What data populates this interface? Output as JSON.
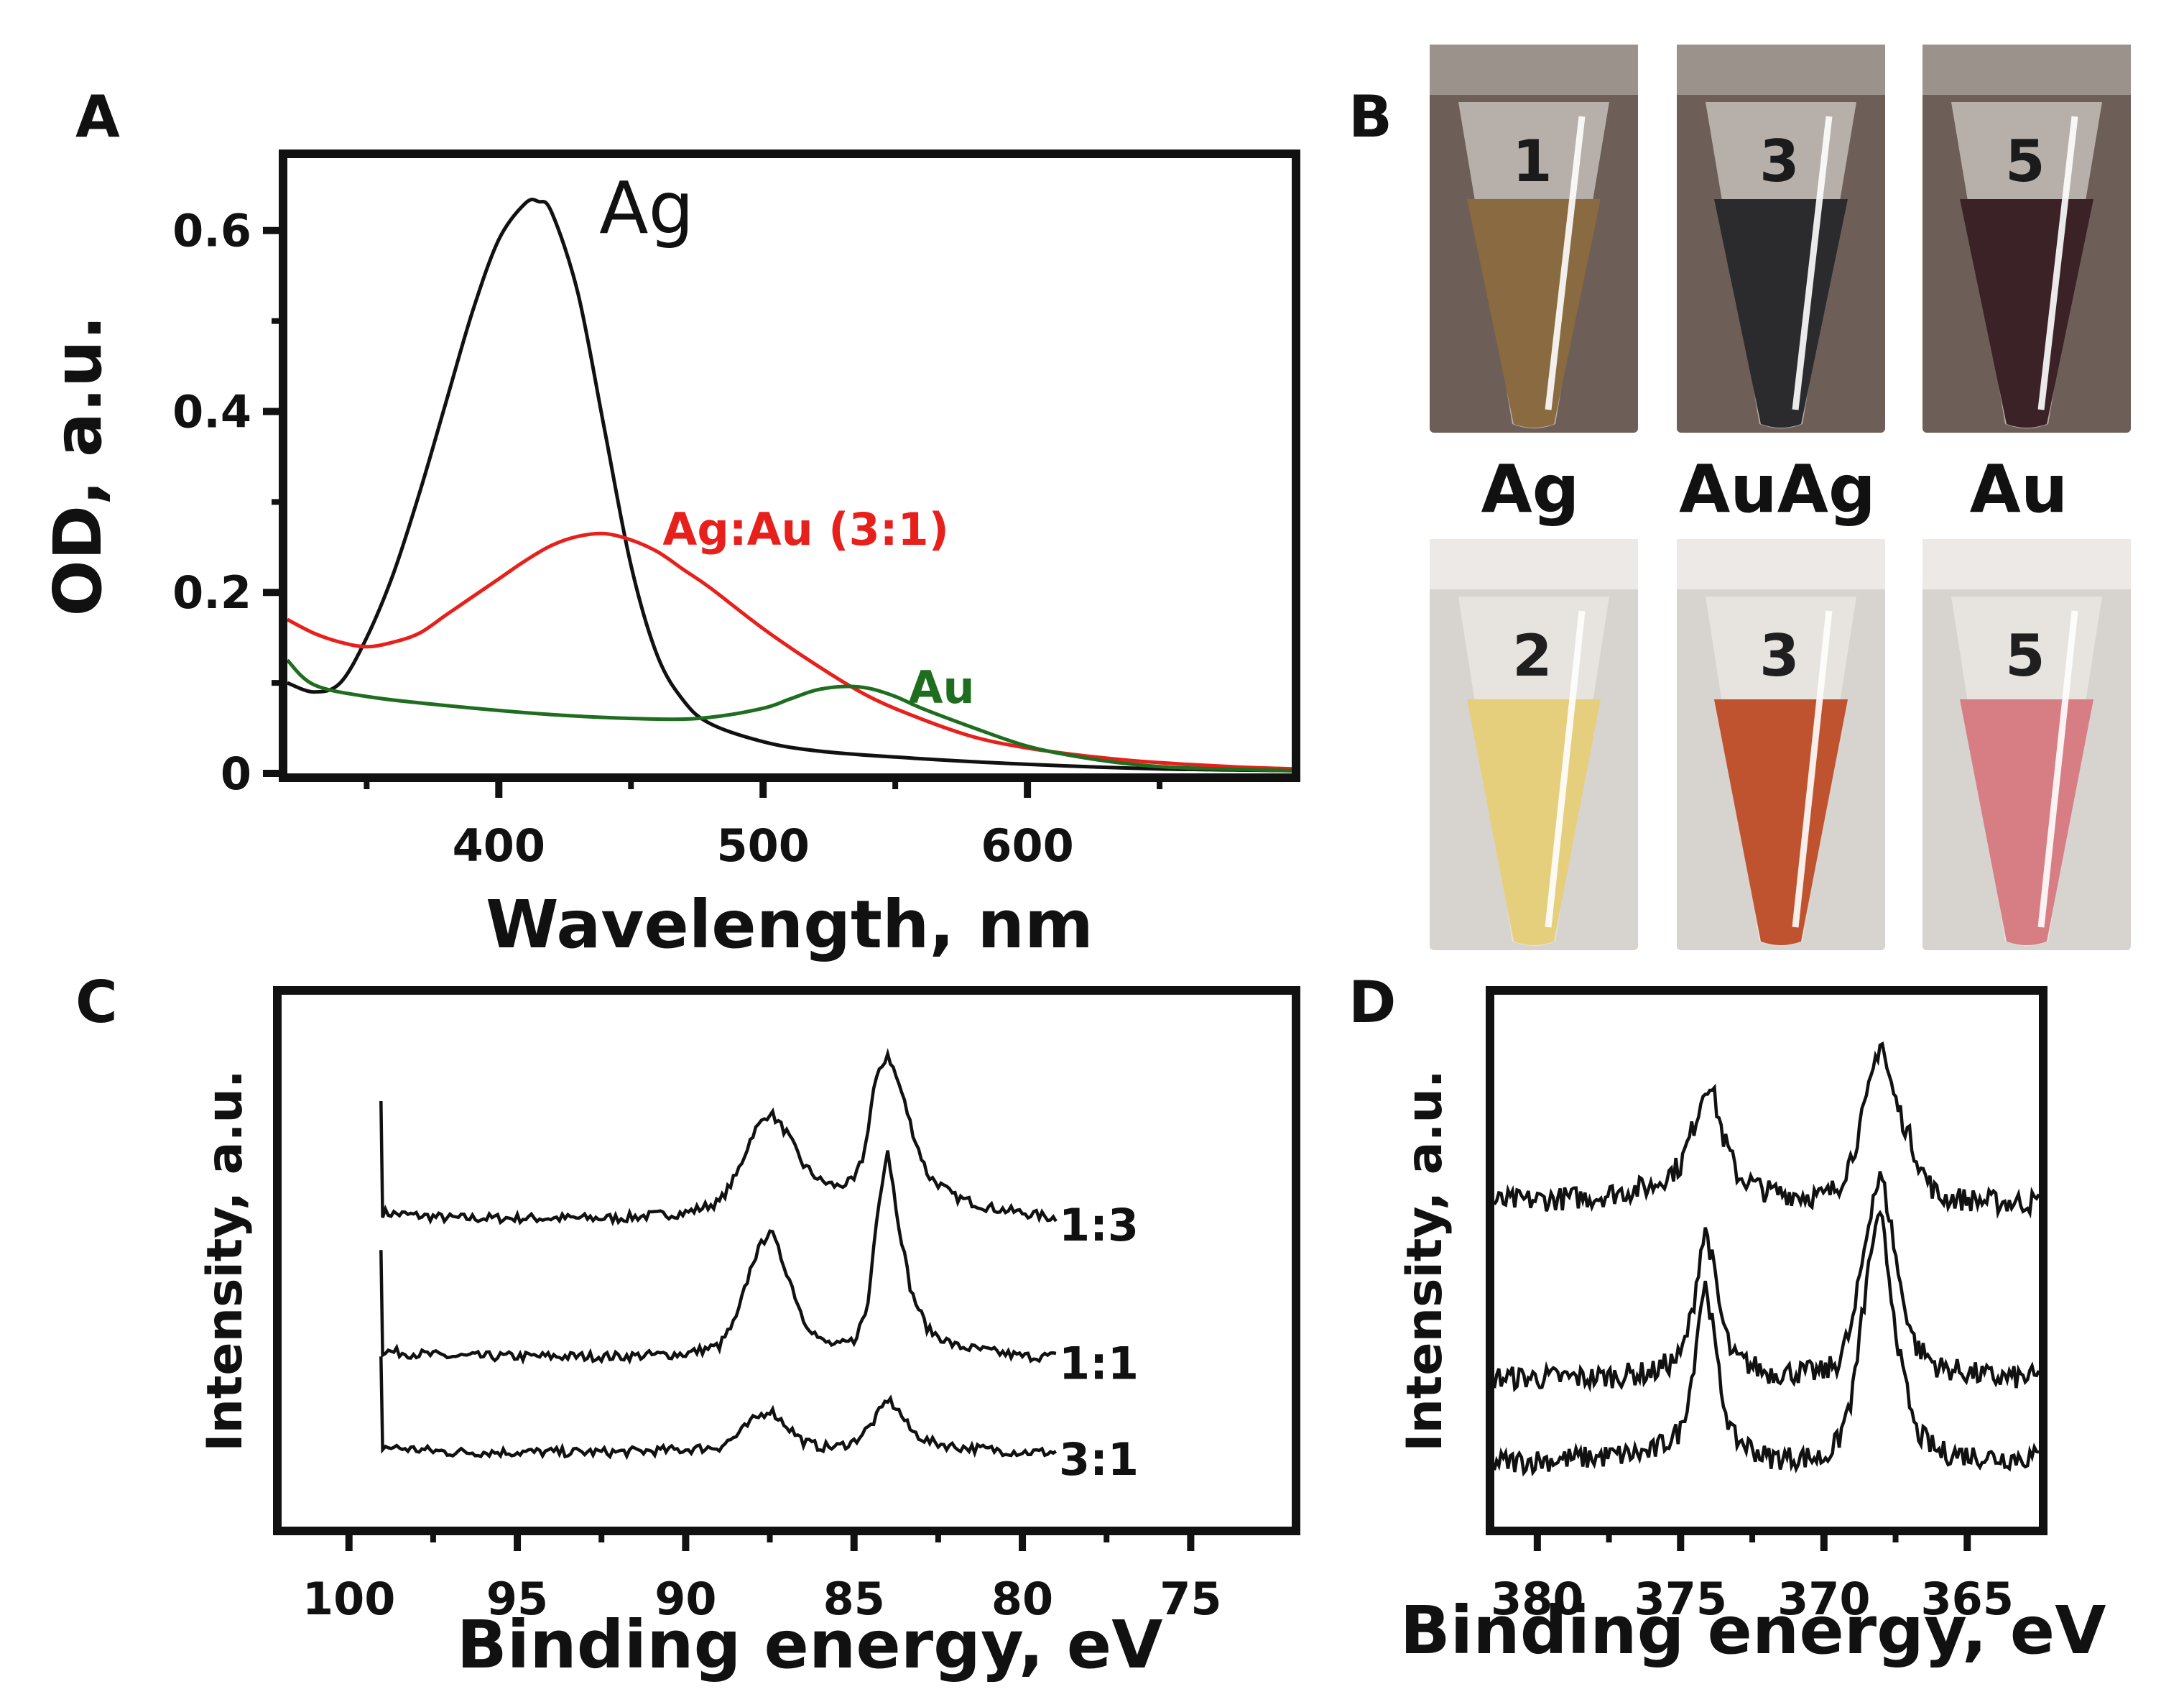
{
  "panel_labels": {
    "a": "A",
    "b": "B",
    "c": "C",
    "d": "D"
  },
  "tubes": {
    "labels": [
      "Ag",
      "AuAg",
      "Au"
    ],
    "top_colors": [
      "#8a6a40",
      "#2b2a2c",
      "#3a2226"
    ],
    "bottom_colors": [
      "#e6cf7c",
      "#c0532f",
      "#d77e85"
    ],
    "cap_marks_top": [
      "1",
      "3",
      "5"
    ],
    "cap_marks_bottom": [
      "2",
      "3",
      "5"
    ]
  },
  "chart_data": [
    {
      "id": "A",
      "type": "line",
      "xlabel": "Wavelength, nm",
      "ylabel": "OD, a.u.",
      "xlim": [
        320,
        700
      ],
      "ylim": [
        0,
        0.68
      ],
      "xticks": [
        400,
        500,
        600
      ],
      "yticks": [
        0,
        0.2,
        0.4,
        0.6
      ],
      "ytick_labels": [
        "0",
        "0.2",
        "0.4",
        "0.6"
      ],
      "series": [
        {
          "name": "Ag",
          "color": "#111111",
          "x": [
            320,
            330,
            340,
            350,
            360,
            370,
            380,
            390,
            400,
            410,
            415,
            420,
            430,
            440,
            450,
            460,
            470,
            480,
            500,
            520,
            550,
            600,
            650,
            700
          ],
          "y": [
            0.1,
            0.09,
            0.1,
            0.15,
            0.22,
            0.31,
            0.41,
            0.51,
            0.59,
            0.63,
            0.632,
            0.62,
            0.53,
            0.38,
            0.23,
            0.13,
            0.08,
            0.055,
            0.035,
            0.025,
            0.018,
            0.01,
            0.005,
            0.003
          ]
        },
        {
          "name": "Ag:Au (3:1)",
          "color": "#e8201c",
          "x": [
            320,
            330,
            340,
            350,
            360,
            370,
            380,
            390,
            400,
            410,
            420,
            430,
            440,
            450,
            460,
            470,
            480,
            500,
            520,
            540,
            560,
            580,
            600,
            620,
            640,
            660,
            680,
            700
          ],
          "y": [
            0.17,
            0.155,
            0.145,
            0.14,
            0.145,
            0.155,
            0.175,
            0.195,
            0.215,
            0.235,
            0.252,
            0.262,
            0.265,
            0.258,
            0.245,
            0.225,
            0.205,
            0.16,
            0.12,
            0.085,
            0.06,
            0.04,
            0.028,
            0.02,
            0.014,
            0.01,
            0.007,
            0.005
          ]
        },
        {
          "name": "Au",
          "color": "#1f6e1f",
          "x": [
            320,
            330,
            350,
            380,
            420,
            460,
            480,
            500,
            510,
            520,
            530,
            540,
            550,
            560,
            580,
            600,
            620,
            640,
            660,
            700
          ],
          "y": [
            0.125,
            0.098,
            0.085,
            0.075,
            0.065,
            0.06,
            0.062,
            0.072,
            0.082,
            0.092,
            0.096,
            0.094,
            0.085,
            0.072,
            0.05,
            0.03,
            0.018,
            0.01,
            0.006,
            0.003
          ]
        }
      ],
      "annotations": [
        {
          "text": "Ag",
          "x": 438,
          "y": 0.625,
          "color": "#111111"
        },
        {
          "text": "Ag:Au (3:1)",
          "x": 462,
          "y": 0.27,
          "color": "#e8201c"
        },
        {
          "text": "Au",
          "x": 555,
          "y": 0.095,
          "color": "#1f6e1f"
        }
      ]
    },
    {
      "id": "C",
      "type": "line",
      "xlabel": "Binding energy, eV",
      "ylabel": "Intensity, a.u.",
      "xlim": [
        102,
        72
      ],
      "ylim": [
        0,
        10
      ],
      "xticks": [
        100,
        95,
        90,
        85,
        80,
        75
      ],
      "series": [
        {
          "name": "1:3",
          "offset": 5.8,
          "edge": 99,
          "x": [
            99,
            97,
            95,
            92,
            90,
            89,
            88.5,
            88,
            87.5,
            87,
            86.5,
            86,
            85.5,
            85,
            84.7,
            84.4,
            84.0,
            83.6,
            83.2,
            82.8,
            82,
            81,
            80,
            79
          ],
          "y": [
            0.1,
            0.0,
            0.0,
            0.0,
            0.1,
            0.3,
            0.8,
            1.6,
            2.0,
            1.6,
            1.0,
            0.7,
            0.6,
            0.7,
            1.2,
            2.5,
            3.1,
            2.4,
            1.5,
            0.8,
            0.4,
            0.2,
            0.1,
            0.0
          ]
        },
        {
          "name": "1:1",
          "offset": 3.2,
          "edge": 99,
          "x": [
            99,
            97,
            95,
            92,
            90,
            89,
            88.5,
            88,
            87.5,
            87,
            86.5,
            86,
            85.5,
            85,
            84.6,
            84.3,
            84.0,
            83.7,
            83.3,
            82.8,
            82,
            81,
            80,
            79
          ],
          "y": [
            0.1,
            0.0,
            0.0,
            0.0,
            0.05,
            0.2,
            0.7,
            1.8,
            2.4,
            1.6,
            0.7,
            0.3,
            0.2,
            0.3,
            0.9,
            2.8,
            3.9,
            2.6,
            1.2,
            0.5,
            0.2,
            0.1,
            0.0,
            0.0
          ]
        },
        {
          "name": "3:1",
          "offset": 1.4,
          "edge": 99,
          "x": [
            99,
            97,
            95,
            92,
            90,
            89,
            88.5,
            88,
            87.5,
            87,
            86.5,
            86,
            85.5,
            85,
            84.5,
            84.2,
            84.0,
            83.7,
            83.3,
            82.8,
            82,
            81,
            80,
            79
          ],
          "y": [
            0.1,
            0.0,
            0.0,
            0.0,
            0.05,
            0.1,
            0.3,
            0.6,
            0.8,
            0.5,
            0.2,
            0.1,
            0.1,
            0.2,
            0.5,
            0.8,
            1.0,
            0.8,
            0.4,
            0.2,
            0.1,
            0.05,
            0.0,
            0.0
          ]
        }
      ]
    },
    {
      "id": "D",
      "type": "line",
      "xlabel": "Binding energy, eV",
      "ylabel": "Intensity, a.u.",
      "xlim": [
        381.5,
        362.5
      ],
      "ylim": [
        0,
        10
      ],
      "xticks": [
        380,
        375,
        370,
        365
      ],
      "series": [
        {
          "name": "top",
          "offset": 5.8,
          "x": [
            381.5,
            378,
            376,
            375,
            374.5,
            374.2,
            374.0,
            373.8,
            373.5,
            373,
            372,
            370,
            369.5,
            369,
            368.5,
            368.2,
            368.0,
            367.8,
            367.5,
            367,
            366.5,
            366,
            364,
            362.5
          ],
          "y": [
            0.3,
            0.4,
            0.6,
            1.0,
            1.8,
            2.4,
            2.6,
            2.2,
            1.5,
            0.8,
            0.5,
            0.4,
            0.6,
            1.2,
            2.2,
            3.0,
            3.4,
            2.8,
            2.2,
            1.5,
            0.8,
            0.4,
            0.3,
            0.3
          ]
        },
        {
          "name": "middle",
          "offset": 2.6,
          "x": [
            381.5,
            378,
            376,
            375,
            374.6,
            374.3,
            374.1,
            373.9,
            373.6,
            373.2,
            372,
            370,
            369.5,
            369,
            368.6,
            368.3,
            368.0,
            367.7,
            367.3,
            366.8,
            366,
            364,
            362.5
          ],
          "y": [
            0.2,
            0.2,
            0.3,
            0.6,
            1.4,
            2.6,
            3.0,
            2.4,
            1.4,
            0.6,
            0.3,
            0.3,
            0.5,
            1.2,
            2.6,
            3.6,
            4.0,
            3.2,
            1.8,
            0.8,
            0.4,
            0.2,
            0.2
          ]
        },
        {
          "name": "bottom",
          "offset": 1.0,
          "x": [
            381.5,
            378,
            376,
            375,
            374.6,
            374.3,
            374.1,
            373.9,
            373.6,
            373.2,
            372,
            370,
            369.5,
            369,
            368.6,
            368.3,
            368.0,
            367.7,
            367.3,
            366.8,
            366,
            364,
            362.5
          ],
          "y": [
            0.2,
            0.3,
            0.4,
            0.8,
            1.8,
            3.2,
            3.6,
            2.8,
            1.6,
            0.7,
            0.3,
            0.3,
            0.6,
            1.5,
            3.2,
            4.4,
            4.8,
            3.6,
            2.0,
            0.8,
            0.4,
            0.3,
            0.3
          ]
        }
      ]
    }
  ]
}
